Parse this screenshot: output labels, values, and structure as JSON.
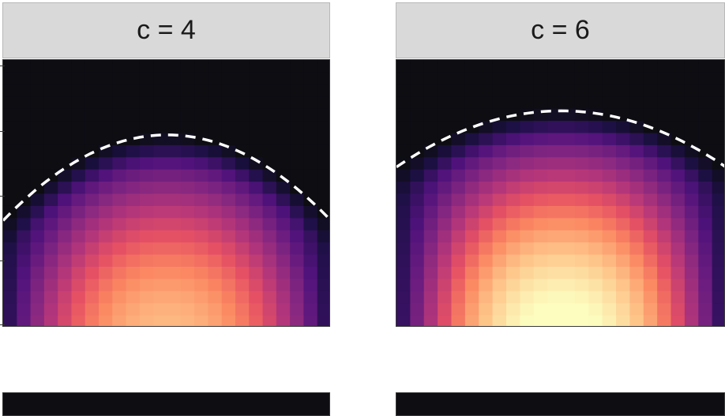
{
  "chart_data": [
    {
      "type": "heatmap",
      "title": "",
      "panel_label": "c = 4",
      "xlabel": "",
      "ylabel": "",
      "boundary_peak_fraction": 0.72,
      "boundary_edge_fraction": 0.4,
      "intensity_max": 0.75,
      "colormap": "magma",
      "boundary_style": "dashed-white"
    },
    {
      "type": "heatmap",
      "title": "",
      "panel_label": "c = 6",
      "xlabel": "",
      "ylabel": "",
      "boundary_peak_fraction": 0.81,
      "boundary_edge_fraction": 0.6,
      "intensity_max": 0.95,
      "colormap": "magma",
      "boundary_style": "dashed-white"
    }
  ],
  "colors": {
    "background": "#0d0d12",
    "strip": "#d9d9d9",
    "boundary": "#ffffff",
    "magma_low": "#3b0f70",
    "magma_mid": "#b73779",
    "magma_high": "#fcfdbf"
  }
}
